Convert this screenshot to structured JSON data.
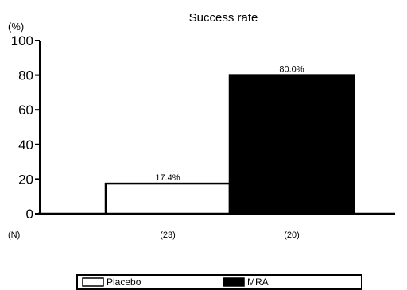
{
  "chart_data": {
    "type": "bar",
    "title": "Success rate",
    "y_unit_label": "(%)",
    "n_label": "(N)",
    "ylim": [
      0,
      100
    ],
    "yticks": [
      0,
      20,
      40,
      60,
      80,
      100
    ],
    "series": [
      {
        "name": "Placebo",
        "value": 17.4,
        "label": "17.4%",
        "n": "(23)",
        "fill": "#ffffff"
      },
      {
        "name": "MRA",
        "value": 80.0,
        "label": "80.0%",
        "n": "(20)",
        "fill": "#000000"
      }
    ],
    "grid": false,
    "legend_position": "bottom"
  }
}
